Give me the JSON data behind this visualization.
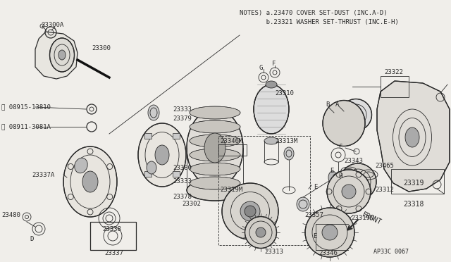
{
  "bg_color": "#f0eeea",
  "line_color": "#2a2a2a",
  "notes_line1": "NOTES) a.23470 COVER SET-DUST (INC.A-D)",
  "notes_line2": "       b.23321 WASHER SET-THRUST (INC.E-H)",
  "diagram_code": "AP33C 0067",
  "figsize": [
    6.4,
    3.72
  ],
  "dpi": 100
}
